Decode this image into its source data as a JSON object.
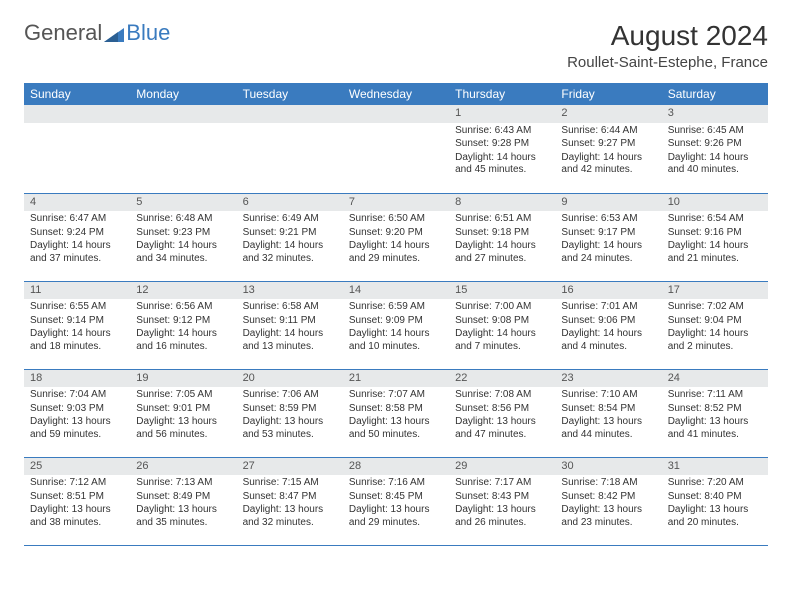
{
  "logo": {
    "text1": "General",
    "text2": "Blue"
  },
  "title": "August 2024",
  "subtitle": "Roullet-Saint-Estephe, France",
  "colors": {
    "header_bg": "#3a7bbf",
    "header_fg": "#ffffff",
    "daynum_bg": "#e7e9ea",
    "border": "#3a7bbf",
    "text": "#333333"
  },
  "weekdays": [
    "Sunday",
    "Monday",
    "Tuesday",
    "Wednesday",
    "Thursday",
    "Friday",
    "Saturday"
  ],
  "weeks": [
    [
      {
        "blank": true
      },
      {
        "blank": true
      },
      {
        "blank": true
      },
      {
        "blank": true
      },
      {
        "day": "1",
        "sunrise": "Sunrise: 6:43 AM",
        "sunset": "Sunset: 9:28 PM",
        "daylight": "Daylight: 14 hours and 45 minutes."
      },
      {
        "day": "2",
        "sunrise": "Sunrise: 6:44 AM",
        "sunset": "Sunset: 9:27 PM",
        "daylight": "Daylight: 14 hours and 42 minutes."
      },
      {
        "day": "3",
        "sunrise": "Sunrise: 6:45 AM",
        "sunset": "Sunset: 9:26 PM",
        "daylight": "Daylight: 14 hours and 40 minutes."
      }
    ],
    [
      {
        "day": "4",
        "sunrise": "Sunrise: 6:47 AM",
        "sunset": "Sunset: 9:24 PM",
        "daylight": "Daylight: 14 hours and 37 minutes."
      },
      {
        "day": "5",
        "sunrise": "Sunrise: 6:48 AM",
        "sunset": "Sunset: 9:23 PM",
        "daylight": "Daylight: 14 hours and 34 minutes."
      },
      {
        "day": "6",
        "sunrise": "Sunrise: 6:49 AM",
        "sunset": "Sunset: 9:21 PM",
        "daylight": "Daylight: 14 hours and 32 minutes."
      },
      {
        "day": "7",
        "sunrise": "Sunrise: 6:50 AM",
        "sunset": "Sunset: 9:20 PM",
        "daylight": "Daylight: 14 hours and 29 minutes."
      },
      {
        "day": "8",
        "sunrise": "Sunrise: 6:51 AM",
        "sunset": "Sunset: 9:18 PM",
        "daylight": "Daylight: 14 hours and 27 minutes."
      },
      {
        "day": "9",
        "sunrise": "Sunrise: 6:53 AM",
        "sunset": "Sunset: 9:17 PM",
        "daylight": "Daylight: 14 hours and 24 minutes."
      },
      {
        "day": "10",
        "sunrise": "Sunrise: 6:54 AM",
        "sunset": "Sunset: 9:16 PM",
        "daylight": "Daylight: 14 hours and 21 minutes."
      }
    ],
    [
      {
        "day": "11",
        "sunrise": "Sunrise: 6:55 AM",
        "sunset": "Sunset: 9:14 PM",
        "daylight": "Daylight: 14 hours and 18 minutes."
      },
      {
        "day": "12",
        "sunrise": "Sunrise: 6:56 AM",
        "sunset": "Sunset: 9:12 PM",
        "daylight": "Daylight: 14 hours and 16 minutes."
      },
      {
        "day": "13",
        "sunrise": "Sunrise: 6:58 AM",
        "sunset": "Sunset: 9:11 PM",
        "daylight": "Daylight: 14 hours and 13 minutes."
      },
      {
        "day": "14",
        "sunrise": "Sunrise: 6:59 AM",
        "sunset": "Sunset: 9:09 PM",
        "daylight": "Daylight: 14 hours and 10 minutes."
      },
      {
        "day": "15",
        "sunrise": "Sunrise: 7:00 AM",
        "sunset": "Sunset: 9:08 PM",
        "daylight": "Daylight: 14 hours and 7 minutes."
      },
      {
        "day": "16",
        "sunrise": "Sunrise: 7:01 AM",
        "sunset": "Sunset: 9:06 PM",
        "daylight": "Daylight: 14 hours and 4 minutes."
      },
      {
        "day": "17",
        "sunrise": "Sunrise: 7:02 AM",
        "sunset": "Sunset: 9:04 PM",
        "daylight": "Daylight: 14 hours and 2 minutes."
      }
    ],
    [
      {
        "day": "18",
        "sunrise": "Sunrise: 7:04 AM",
        "sunset": "Sunset: 9:03 PM",
        "daylight": "Daylight: 13 hours and 59 minutes."
      },
      {
        "day": "19",
        "sunrise": "Sunrise: 7:05 AM",
        "sunset": "Sunset: 9:01 PM",
        "daylight": "Daylight: 13 hours and 56 minutes."
      },
      {
        "day": "20",
        "sunrise": "Sunrise: 7:06 AM",
        "sunset": "Sunset: 8:59 PM",
        "daylight": "Daylight: 13 hours and 53 minutes."
      },
      {
        "day": "21",
        "sunrise": "Sunrise: 7:07 AM",
        "sunset": "Sunset: 8:58 PM",
        "daylight": "Daylight: 13 hours and 50 minutes."
      },
      {
        "day": "22",
        "sunrise": "Sunrise: 7:08 AM",
        "sunset": "Sunset: 8:56 PM",
        "daylight": "Daylight: 13 hours and 47 minutes."
      },
      {
        "day": "23",
        "sunrise": "Sunrise: 7:10 AM",
        "sunset": "Sunset: 8:54 PM",
        "daylight": "Daylight: 13 hours and 44 minutes."
      },
      {
        "day": "24",
        "sunrise": "Sunrise: 7:11 AM",
        "sunset": "Sunset: 8:52 PM",
        "daylight": "Daylight: 13 hours and 41 minutes."
      }
    ],
    [
      {
        "day": "25",
        "sunrise": "Sunrise: 7:12 AM",
        "sunset": "Sunset: 8:51 PM",
        "daylight": "Daylight: 13 hours and 38 minutes."
      },
      {
        "day": "26",
        "sunrise": "Sunrise: 7:13 AM",
        "sunset": "Sunset: 8:49 PM",
        "daylight": "Daylight: 13 hours and 35 minutes."
      },
      {
        "day": "27",
        "sunrise": "Sunrise: 7:15 AM",
        "sunset": "Sunset: 8:47 PM",
        "daylight": "Daylight: 13 hours and 32 minutes."
      },
      {
        "day": "28",
        "sunrise": "Sunrise: 7:16 AM",
        "sunset": "Sunset: 8:45 PM",
        "daylight": "Daylight: 13 hours and 29 minutes."
      },
      {
        "day": "29",
        "sunrise": "Sunrise: 7:17 AM",
        "sunset": "Sunset: 8:43 PM",
        "daylight": "Daylight: 13 hours and 26 minutes."
      },
      {
        "day": "30",
        "sunrise": "Sunrise: 7:18 AM",
        "sunset": "Sunset: 8:42 PM",
        "daylight": "Daylight: 13 hours and 23 minutes."
      },
      {
        "day": "31",
        "sunrise": "Sunrise: 7:20 AM",
        "sunset": "Sunset: 8:40 PM",
        "daylight": "Daylight: 13 hours and 20 minutes."
      }
    ]
  ]
}
